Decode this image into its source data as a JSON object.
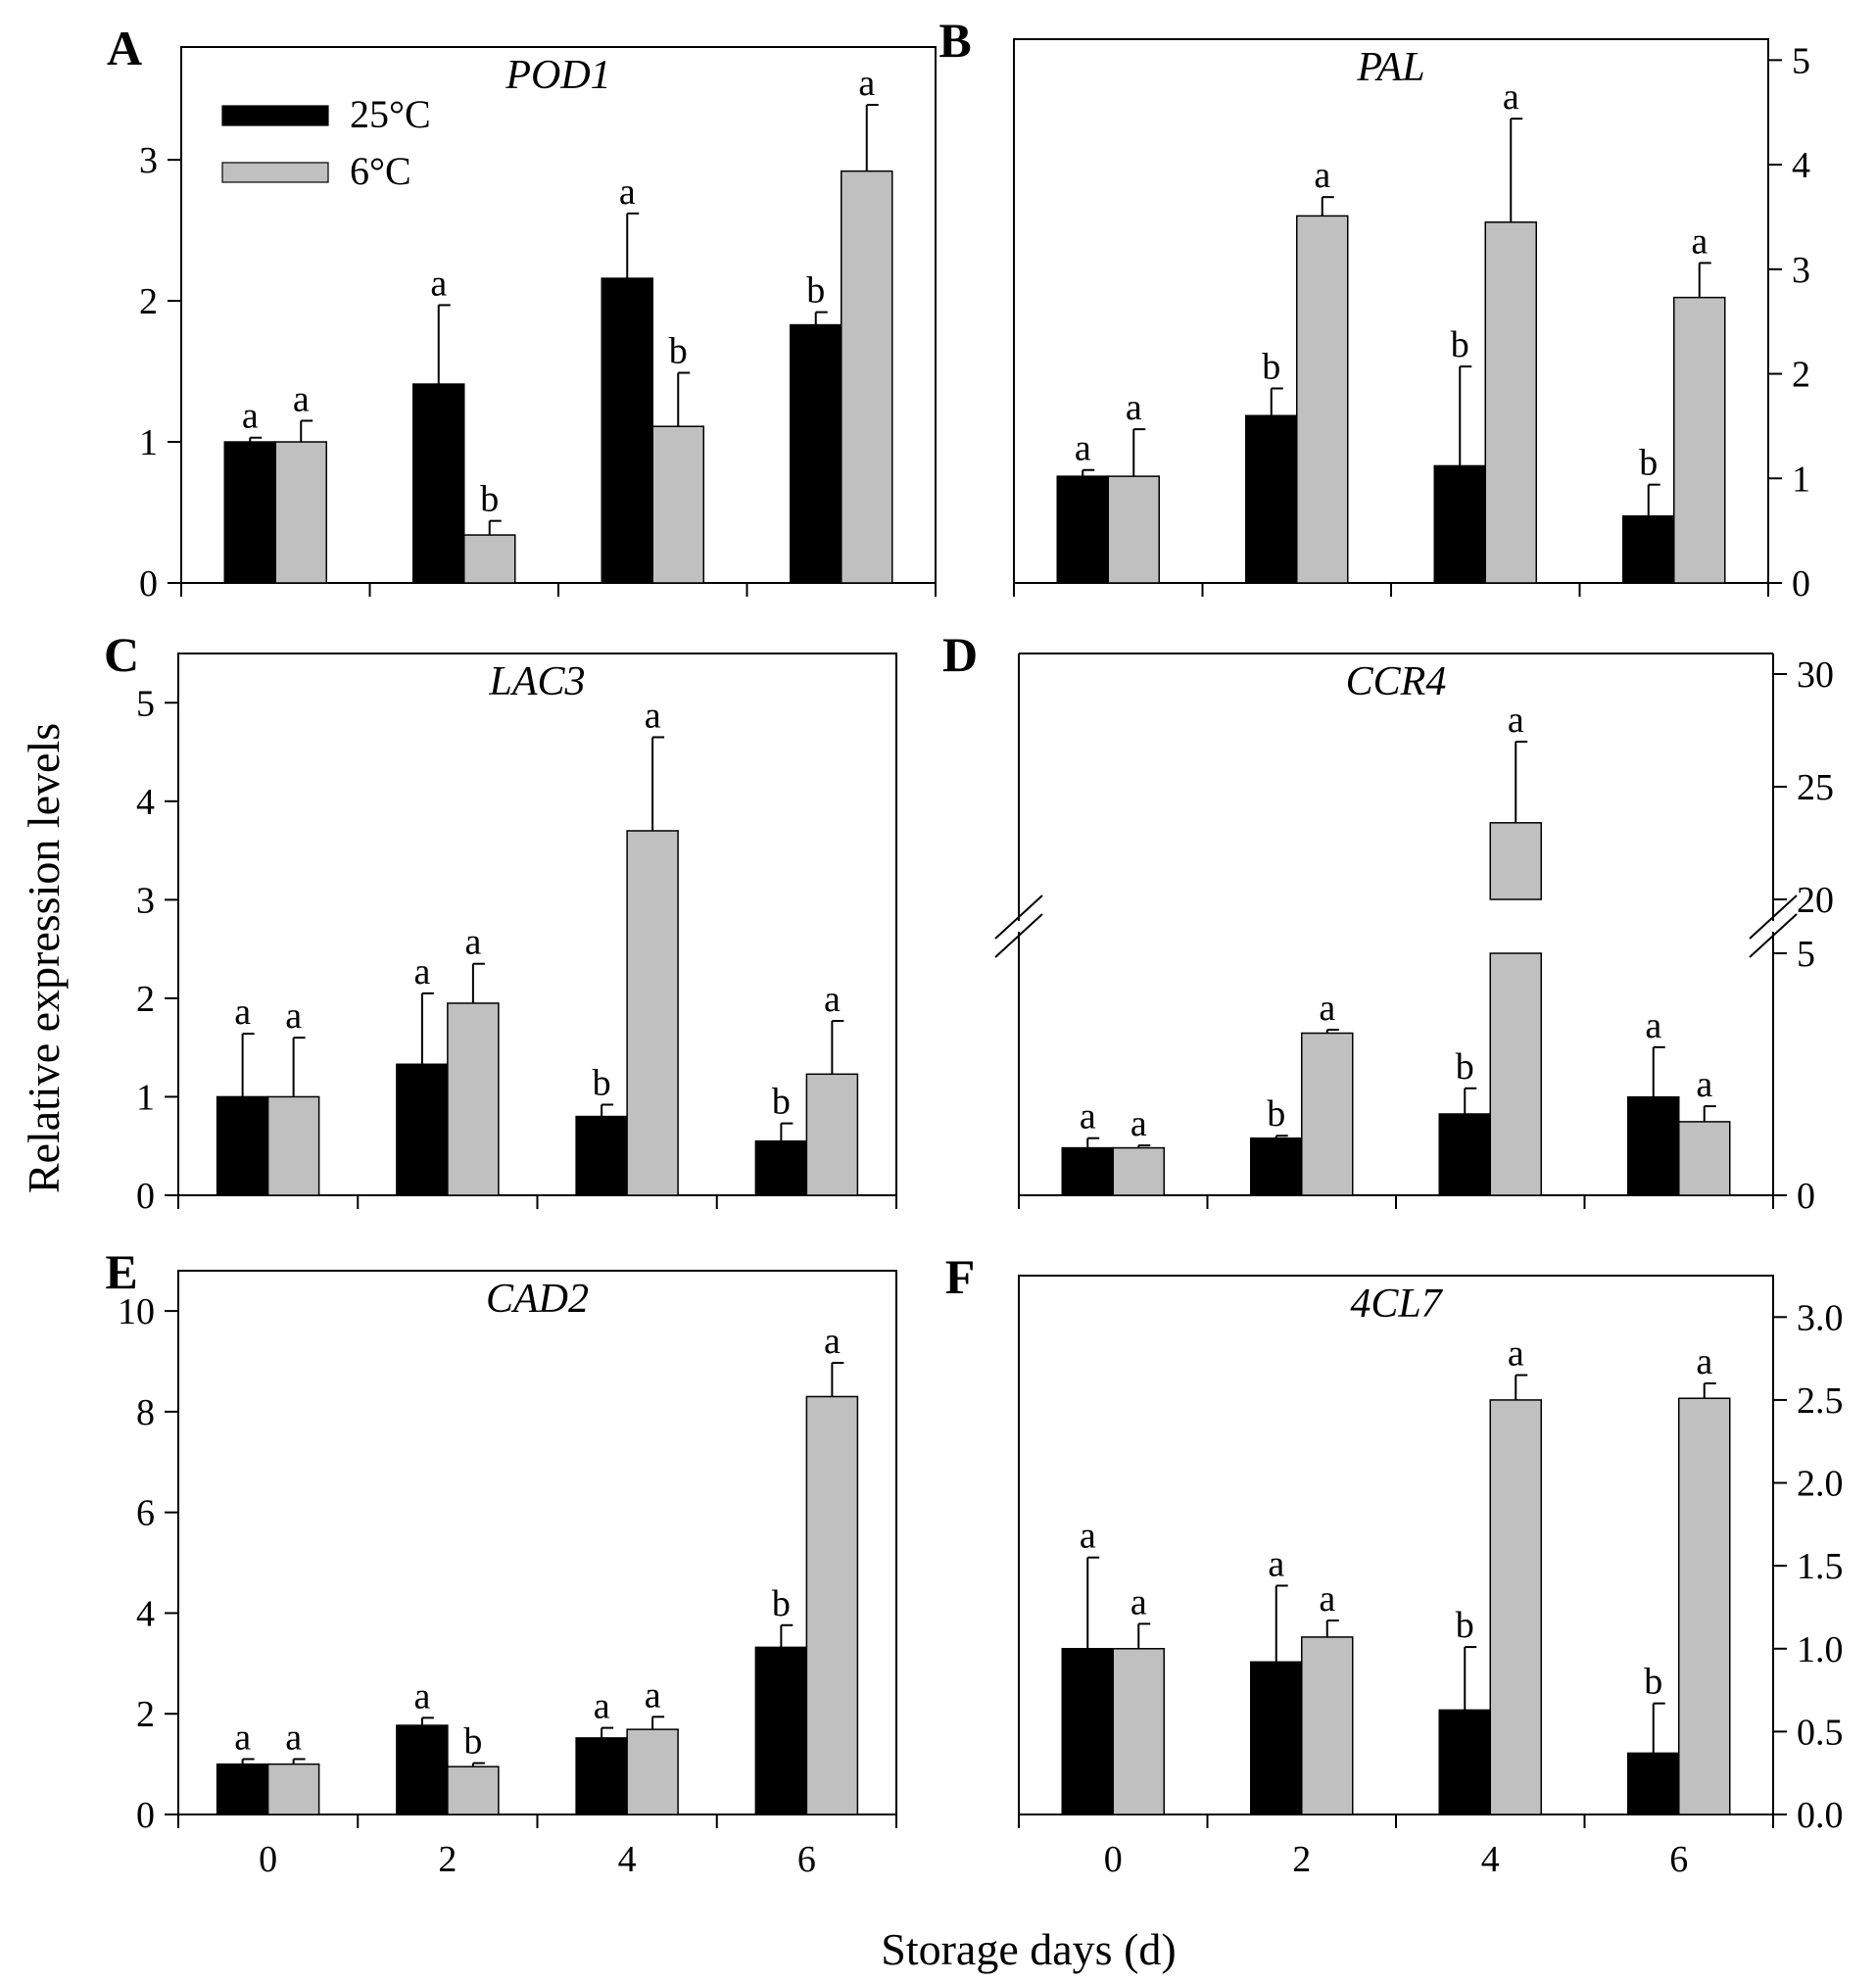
{
  "figure": {
    "xlabel": "Storage days (d)",
    "ylabel": "Relative expression levels"
  },
  "colors": {
    "c25": "#000000",
    "c6": "#c0c0c0",
    "axis": "#000000"
  },
  "chart_data": [
    {
      "type": "bar",
      "panel": "A",
      "title": "POD1",
      "axis_side": "left",
      "categories": [
        "0",
        "2",
        "4",
        "6"
      ],
      "ylim": [
        0,
        3.8
      ],
      "yticks": [
        0,
        1,
        2,
        3
      ],
      "tick_format": "0",
      "legend": {
        "show": true,
        "position": "top-left",
        "entries": [
          "25°C",
          "6°C"
        ]
      },
      "series": [
        {
          "name": "25°C",
          "values": [
            1.0,
            1.41,
            2.16,
            1.83
          ],
          "errors": [
            0.03,
            0.56,
            0.46,
            0.09
          ],
          "letters": [
            "a",
            "a",
            "a",
            "b"
          ]
        },
        {
          "name": "6°C",
          "values": [
            1.0,
            0.34,
            1.11,
            2.92
          ],
          "errors": [
            0.15,
            0.1,
            0.38,
            0.47
          ],
          "letters": [
            "a",
            "b",
            "b",
            "a"
          ]
        }
      ]
    },
    {
      "type": "bar",
      "panel": "B",
      "title": "PAL",
      "axis_side": "right",
      "categories": [
        "0",
        "2",
        "4",
        "6"
      ],
      "ylim": [
        0,
        5.2
      ],
      "yticks": [
        0,
        1,
        2,
        3,
        4,
        5
      ],
      "tick_format": "0",
      "legend": {
        "show": false
      },
      "series": [
        {
          "name": "25°C",
          "values": [
            1.02,
            1.6,
            1.12,
            0.64
          ],
          "errors": [
            0.06,
            0.26,
            0.95,
            0.3
          ],
          "letters": [
            "a",
            "b",
            "b",
            "b"
          ]
        },
        {
          "name": "6°C",
          "values": [
            1.02,
            3.51,
            3.45,
            2.73
          ],
          "errors": [
            0.45,
            0.18,
            0.99,
            0.33
          ],
          "letters": [
            "a",
            "a",
            "a",
            "a"
          ]
        }
      ]
    },
    {
      "type": "bar",
      "panel": "C",
      "title": "LAC3",
      "axis_side": "left",
      "categories": [
        "0",
        "2",
        "4",
        "6"
      ],
      "ylim": [
        0,
        5.5
      ],
      "yticks": [
        0,
        1,
        2,
        3,
        4,
        5
      ],
      "tick_format": "0",
      "legend": {
        "show": false
      },
      "series": [
        {
          "name": "25°C",
          "values": [
            1.0,
            1.33,
            0.8,
            0.55
          ],
          "errors": [
            0.64,
            0.72,
            0.12,
            0.18
          ],
          "letters": [
            "a",
            "a",
            "b",
            "b"
          ]
        },
        {
          "name": "6°C",
          "values": [
            1.0,
            1.95,
            3.7,
            1.23
          ],
          "errors": [
            0.6,
            0.4,
            0.95,
            0.54
          ],
          "letters": [
            "a",
            "a",
            "a",
            "a"
          ]
        }
      ]
    },
    {
      "type": "bar",
      "panel": "D",
      "title": "CCR4",
      "axis_side": "right",
      "categories": [
        "0",
        "2",
        "4",
        "6"
      ],
      "broken_axis": {
        "low": [
          0,
          5
        ],
        "high": [
          20,
          31
        ]
      },
      "yticks_low": [
        0,
        5
      ],
      "yticks_high": [
        20,
        25,
        30
      ],
      "tick_format": "0",
      "legend": {
        "show": false
      },
      "series": [
        {
          "name": "25°C",
          "values": [
            0.98,
            1.18,
            1.68,
            2.03
          ],
          "errors": [
            0.2,
            0.05,
            0.53,
            1.03
          ],
          "letters": [
            "a",
            "b",
            "b",
            "a"
          ]
        },
        {
          "name": "6°C",
          "values": [
            0.98,
            3.35,
            23.4,
            1.52
          ],
          "errors": [
            0.05,
            0.07,
            3.6,
            0.32
          ],
          "letters": [
            "a",
            "a",
            "a",
            "a"
          ]
        }
      ]
    },
    {
      "type": "bar",
      "panel": "E",
      "title": "CAD2",
      "axis_side": "left",
      "categories": [
        "0",
        "2",
        "4",
        "6"
      ],
      "ylim": [
        0,
        10.8
      ],
      "yticks": [
        0,
        2,
        4,
        6,
        8,
        10
      ],
      "tick_format": "0",
      "legend": {
        "show": false
      },
      "series": [
        {
          "name": "25°C",
          "values": [
            1.0,
            1.77,
            1.52,
            3.32
          ],
          "errors": [
            0.1,
            0.15,
            0.2,
            0.44
          ],
          "letters": [
            "a",
            "a",
            "a",
            "b"
          ]
        },
        {
          "name": "6°C",
          "values": [
            1.0,
            0.95,
            1.69,
            8.3
          ],
          "errors": [
            0.1,
            0.07,
            0.25,
            0.67
          ],
          "letters": [
            "a",
            "b",
            "a",
            "a"
          ]
        }
      ]
    },
    {
      "type": "bar",
      "panel": "F",
      "title": "4CL7",
      "axis_side": "right",
      "categories": [
        "0",
        "2",
        "4",
        "6"
      ],
      "ylim": [
        0,
        3.25
      ],
      "yticks": [
        0,
        0.5,
        1.0,
        1.5,
        2.0,
        2.5,
        3.0
      ],
      "tick_format": "0.0",
      "legend": {
        "show": false
      },
      "series": [
        {
          "name": "25°C",
          "values": [
            1.0,
            0.92,
            0.63,
            0.37
          ],
          "errors": [
            0.55,
            0.46,
            0.38,
            0.3
          ],
          "letters": [
            "a",
            "a",
            "b",
            "b"
          ]
        },
        {
          "name": "6°C",
          "values": [
            1.0,
            1.07,
            2.5,
            2.51
          ],
          "errors": [
            0.15,
            0.1,
            0.15,
            0.09
          ],
          "letters": [
            "a",
            "a",
            "a",
            "a"
          ]
        }
      ]
    }
  ]
}
